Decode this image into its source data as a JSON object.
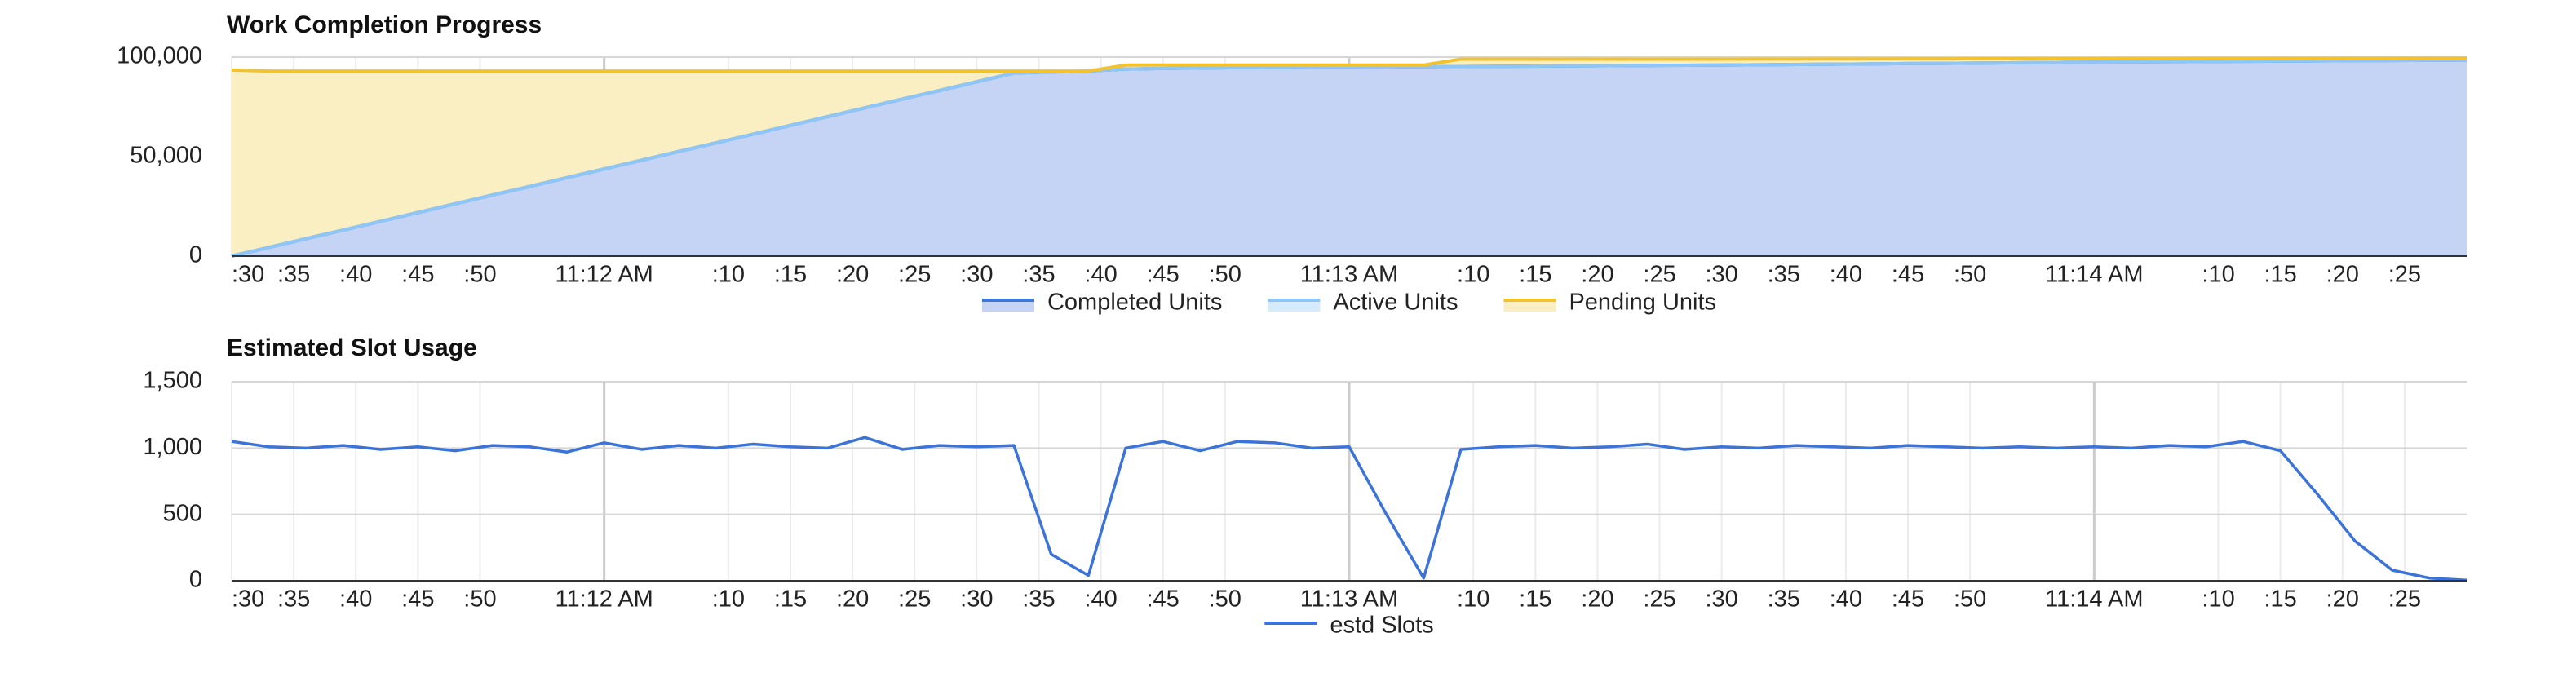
{
  "chart_data": [
    {
      "type": "area",
      "title": "Work Completion Progress",
      "stacked": true,
      "grid": true,
      "legend": "bottom",
      "x": [
        "11:11:30",
        "11:11:33",
        "11:11:36",
        "11:11:39",
        "11:11:42",
        "11:11:45",
        "11:11:48",
        "11:11:51",
        "11:11:54",
        "11:11:57",
        "11:12:00",
        "11:12:03",
        "11:12:06",
        "11:12:09",
        "11:12:12",
        "11:12:15",
        "11:12:18",
        "11:12:21",
        "11:12:24",
        "11:12:27",
        "11:12:30",
        "11:12:33",
        "11:12:36",
        "11:12:39",
        "11:12:42",
        "11:12:45",
        "11:12:48",
        "11:12:51",
        "11:12:54",
        "11:12:57",
        "11:13:00",
        "11:13:03",
        "11:13:06",
        "11:13:09",
        "11:13:12",
        "11:13:15",
        "11:13:18",
        "11:13:21",
        "11:13:24",
        "11:13:27",
        "11:13:30",
        "11:13:33",
        "11:13:36",
        "11:13:39",
        "11:13:42",
        "11:13:45",
        "11:13:48",
        "11:13:51",
        "11:13:54",
        "11:13:57",
        "11:14:00",
        "11:14:03",
        "11:14:06",
        "11:14:09",
        "11:14:12",
        "11:14:15",
        "11:14:18",
        "11:14:21",
        "11:14:24",
        "11:14:27",
        "11:14:30"
      ],
      "xlim": [
        "11:11:30",
        "11:14:30"
      ],
      "xticks": [
        {
          "value": "11:11:30",
          "label": ":30"
        },
        {
          "value": "11:11:35",
          "label": ":35"
        },
        {
          "value": "11:11:40",
          "label": ":40"
        },
        {
          "value": "11:11:45",
          "label": ":45"
        },
        {
          "value": "11:11:50",
          "label": ":50"
        },
        {
          "value": "11:12:00",
          "label": "11:12 AM"
        },
        {
          "value": "11:12:10",
          "label": ":10"
        },
        {
          "value": "11:12:15",
          "label": ":15"
        },
        {
          "value": "11:12:20",
          "label": ":20"
        },
        {
          "value": "11:12:25",
          "label": ":25"
        },
        {
          "value": "11:12:30",
          "label": ":30"
        },
        {
          "value": "11:12:35",
          "label": ":35"
        },
        {
          "value": "11:12:40",
          "label": ":40"
        },
        {
          "value": "11:12:45",
          "label": ":45"
        },
        {
          "value": "11:12:50",
          "label": ":50"
        },
        {
          "value": "11:13:00",
          "label": "11:13 AM"
        },
        {
          "value": "11:13:10",
          "label": ":10"
        },
        {
          "value": "11:13:15",
          "label": ":15"
        },
        {
          "value": "11:13:20",
          "label": ":20"
        },
        {
          "value": "11:13:25",
          "label": ":25"
        },
        {
          "value": "11:13:30",
          "label": ":30"
        },
        {
          "value": "11:13:35",
          "label": ":35"
        },
        {
          "value": "11:13:40",
          "label": ":40"
        },
        {
          "value": "11:13:45",
          "label": ":45"
        },
        {
          "value": "11:13:50",
          "label": ":50"
        },
        {
          "value": "11:14:00",
          "label": "11:14 AM"
        },
        {
          "value": "11:14:10",
          "label": ":10"
        },
        {
          "value": "11:14:15",
          "label": ":15"
        },
        {
          "value": "11:14:20",
          "label": ":20"
        },
        {
          "value": "11:14:25",
          "label": ":25"
        }
      ],
      "ylim": [
        0,
        100000
      ],
      "yticks": [
        0,
        {
          "value": 50000,
          "label": "50,000"
        },
        {
          "value": 100000,
          "label": "100,000"
        }
      ],
      "series": [
        {
          "name": "Completed Units",
          "color": "#3f78d8",
          "fill": "#c5d3f5",
          "values": [
            0,
            4400,
            8800,
            13100,
            17500,
            21900,
            26300,
            30700,
            35000,
            39400,
            43800,
            48200,
            52600,
            56900,
            61300,
            65700,
            70100,
            74500,
            78900,
            83200,
            87600,
            92000,
            92500,
            93000,
            94000,
            94300,
            94500,
            94700,
            94800,
            94900,
            95000,
            95100,
            95200,
            95300,
            95400,
            95500,
            95600,
            95700,
            95800,
            95900,
            96000,
            96150,
            96300,
            96450,
            96600,
            96750,
            96900,
            97050,
            97200,
            97350,
            97500,
            97600,
            97700,
            97800,
            97900,
            98000,
            98100,
            98200,
            98300,
            98400,
            98500
          ]
        },
        {
          "name": "Active Units",
          "color": "#8ec6f7",
          "fill": "#d6ebfc",
          "values": [
            0,
            0,
            0,
            0,
            0,
            0,
            0,
            0,
            0,
            0,
            0,
            0,
            0,
            0,
            0,
            0,
            0,
            0,
            0,
            0,
            0,
            0,
            0,
            0,
            0,
            0,
            0,
            0,
            0,
            0,
            0,
            0,
            0,
            0,
            0,
            0,
            0,
            0,
            0,
            0,
            0,
            0,
            0,
            0,
            0,
            0,
            0,
            0,
            0,
            0,
            0,
            0,
            0,
            0,
            0,
            0,
            0,
            0,
            0,
            0,
            0
          ]
        },
        {
          "name": "Pending Units",
          "color": "#f2c230",
          "fill": "#f9efc2",
          "values": [
            93500,
            88600,
            84200,
            79900,
            75500,
            71100,
            66700,
            62300,
            58000,
            53600,
            49200,
            44800,
            40400,
            36100,
            31700,
            27300,
            22900,
            18500,
            14100,
            9800,
            5400,
            1000,
            500,
            0,
            2000,
            1700,
            1500,
            1300,
            1200,
            1100,
            1000,
            900,
            800,
            3700,
            3600,
            3500,
            3400,
            3300,
            3200,
            3100,
            3000,
            2875,
            2750,
            2625,
            2500,
            2375,
            2250,
            2125,
            2000,
            1875,
            1750,
            1675,
            1600,
            1525,
            1450,
            1375,
            1300,
            1225,
            1150,
            1075,
            1000
          ]
        }
      ]
    },
    {
      "type": "line",
      "title": "Estimated Slot Usage",
      "stacked": false,
      "grid": true,
      "legend": "bottom",
      "x": [
        "11:11:30",
        "11:11:33",
        "11:11:36",
        "11:11:39",
        "11:11:42",
        "11:11:45",
        "11:11:48",
        "11:11:51",
        "11:11:54",
        "11:11:57",
        "11:12:00",
        "11:12:03",
        "11:12:06",
        "11:12:09",
        "11:12:12",
        "11:12:15",
        "11:12:18",
        "11:12:21",
        "11:12:24",
        "11:12:27",
        "11:12:30",
        "11:12:33",
        "11:12:36",
        "11:12:39",
        "11:12:42",
        "11:12:45",
        "11:12:48",
        "11:12:51",
        "11:12:54",
        "11:12:57",
        "11:13:00",
        "11:13:03",
        "11:13:06",
        "11:13:09",
        "11:13:12",
        "11:13:15",
        "11:13:18",
        "11:13:21",
        "11:13:24",
        "11:13:27",
        "11:13:30",
        "11:13:33",
        "11:13:36",
        "11:13:39",
        "11:13:42",
        "11:13:45",
        "11:13:48",
        "11:13:51",
        "11:13:54",
        "11:13:57",
        "11:14:00",
        "11:14:03",
        "11:14:06",
        "11:14:09",
        "11:14:12",
        "11:14:15",
        "11:14:18",
        "11:14:21",
        "11:14:24",
        "11:14:27",
        "11:14:30"
      ],
      "xlim": [
        "11:11:30",
        "11:14:30"
      ],
      "xticks": [
        {
          "value": "11:11:30",
          "label": ":30"
        },
        {
          "value": "11:11:35",
          "label": ":35"
        },
        {
          "value": "11:11:40",
          "label": ":40"
        },
        {
          "value": "11:11:45",
          "label": ":45"
        },
        {
          "value": "11:11:50",
          "label": ":50"
        },
        {
          "value": "11:12:00",
          "label": "11:12 AM"
        },
        {
          "value": "11:12:10",
          "label": ":10"
        },
        {
          "value": "11:12:15",
          "label": ":15"
        },
        {
          "value": "11:12:20",
          "label": ":20"
        },
        {
          "value": "11:12:25",
          "label": ":25"
        },
        {
          "value": "11:12:30",
          "label": ":30"
        },
        {
          "value": "11:12:35",
          "label": ":35"
        },
        {
          "value": "11:12:40",
          "label": ":40"
        },
        {
          "value": "11:12:45",
          "label": ":45"
        },
        {
          "value": "11:12:50",
          "label": ":50"
        },
        {
          "value": "11:13:00",
          "label": "11:13 AM"
        },
        {
          "value": "11:13:10",
          "label": ":10"
        },
        {
          "value": "11:13:15",
          "label": ":15"
        },
        {
          "value": "11:13:20",
          "label": ":20"
        },
        {
          "value": "11:13:25",
          "label": ":25"
        },
        {
          "value": "11:13:30",
          "label": ":30"
        },
        {
          "value": "11:13:35",
          "label": ":35"
        },
        {
          "value": "11:13:40",
          "label": ":40"
        },
        {
          "value": "11:13:45",
          "label": ":45"
        },
        {
          "value": "11:13:50",
          "label": ":50"
        },
        {
          "value": "11:14:00",
          "label": "11:14 AM"
        },
        {
          "value": "11:14:10",
          "label": ":10"
        },
        {
          "value": "11:14:15",
          "label": ":15"
        },
        {
          "value": "11:14:20",
          "label": ":20"
        },
        {
          "value": "11:14:25",
          "label": ":25"
        }
      ],
      "ylim": [
        0,
        1500
      ],
      "yticks": [
        0,
        500,
        {
          "value": 1000,
          "label": "1,000"
        },
        {
          "value": 1500,
          "label": "1,500"
        }
      ],
      "series": [
        {
          "name": "estd Slots",
          "color": "#3b73d9",
          "values": [
            1050,
            1010,
            1000,
            1020,
            990,
            1010,
            980,
            1020,
            1010,
            970,
            1040,
            990,
            1020,
            1000,
            1030,
            1010,
            1000,
            1080,
            990,
            1020,
            1010,
            1020,
            200,
            40,
            1000,
            1050,
            980,
            1050,
            1040,
            1000,
            1010,
            500,
            20,
            990,
            1010,
            1020,
            1000,
            1010,
            1030,
            990,
            1010,
            1000,
            1020,
            1010,
            1000,
            1020,
            1010,
            1000,
            1010,
            1000,
            1010,
            1000,
            1020,
            1010,
            1050,
            980,
            650,
            300,
            80,
            20,
            5
          ]
        }
      ]
    }
  ]
}
